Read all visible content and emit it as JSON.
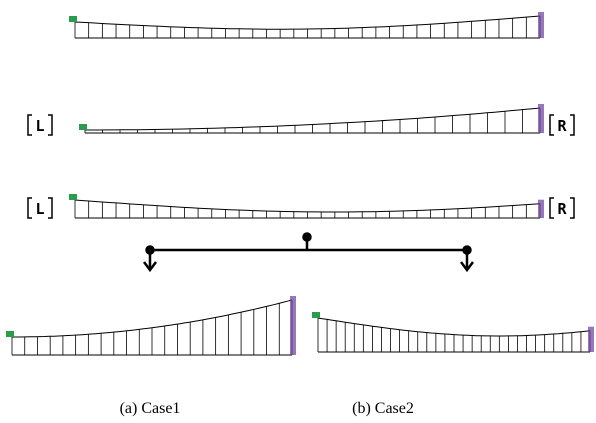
{
  "labels": {
    "left": "L",
    "right": "R"
  },
  "captions": [
    "(a) Case1",
    "(b) Case2"
  ]
}
